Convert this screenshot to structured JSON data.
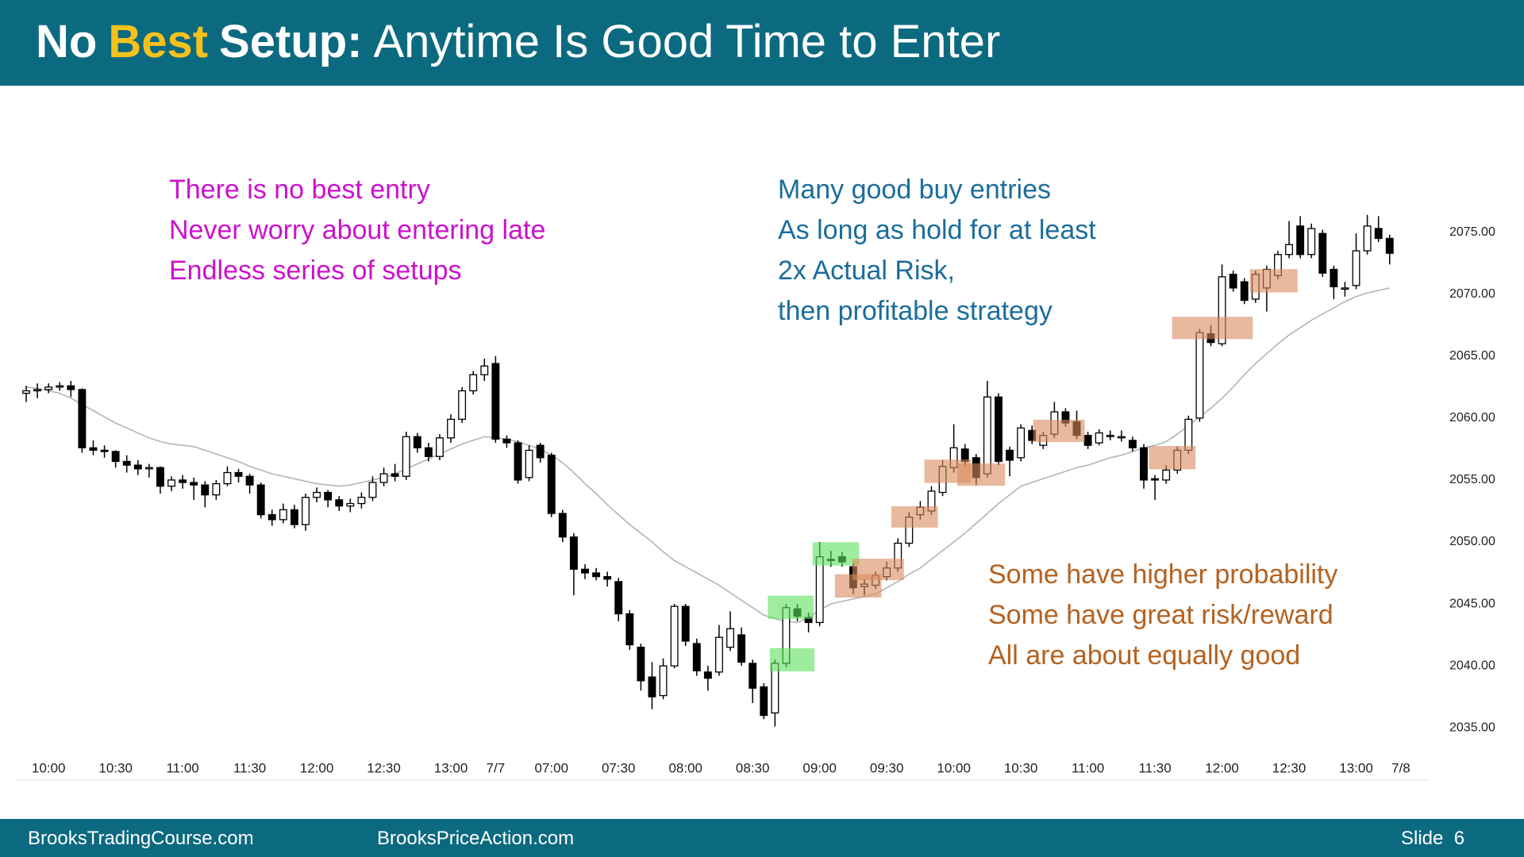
{
  "header": {
    "title": [
      "No",
      "Best",
      "Setup:",
      "Anytime Is Good Time to Enter"
    ]
  },
  "notes": {
    "left": [
      "There is no best entry",
      "Never worry about entering late",
      "Endless series of setups"
    ],
    "right": [
      "Many good buy entries",
      "As long as hold for at least",
      "2x Actual Risk,",
      "then profitable strategy"
    ],
    "bottom": [
      "Some have higher probability",
      "Some have great risk/reward",
      "All are about equally good"
    ]
  },
  "footer": {
    "left": "BrooksTradingCourse.com",
    "center": "BrooksPriceAction.com",
    "slide": "Slide  6"
  },
  "chart_data": {
    "type": "candlestick",
    "up_color": "#ffffff",
    "down_color": "#000000",
    "categories": [
      null,
      null,
      "10:00",
      null,
      null,
      null,
      null,
      null,
      "10:30",
      null,
      null,
      null,
      null,
      null,
      "11:00",
      null,
      null,
      null,
      null,
      null,
      "11:30",
      null,
      null,
      null,
      null,
      null,
      "12:00",
      null,
      null,
      null,
      null,
      null,
      "12:30",
      null,
      null,
      null,
      null,
      null,
      "13:00",
      null,
      null,
      null,
      "7/7",
      null,
      null,
      null,
      null,
      "07:00",
      null,
      null,
      null,
      null,
      null,
      "07:30",
      null,
      null,
      null,
      null,
      null,
      "08:00",
      null,
      null,
      null,
      null,
      null,
      "08:30",
      null,
      null,
      null,
      null,
      null,
      "09:00",
      null,
      null,
      null,
      null,
      null,
      "09:30",
      null,
      null,
      null,
      null,
      null,
      "10:00",
      null,
      null,
      null,
      null,
      null,
      "10:30",
      null,
      null,
      null,
      null,
      null,
      "11:00",
      null,
      null,
      null,
      null,
      null,
      "11:30",
      null,
      null,
      null,
      null,
      null,
      "12:00",
      null,
      null,
      null,
      null,
      null,
      "12:30",
      null,
      null,
      null,
      null,
      null,
      "13:00",
      null,
      null,
      null,
      "7/8"
    ],
    "open": [
      2062.0,
      2062.2,
      2062.3,
      2062.5,
      2062.6,
      2062.3,
      2057.6,
      2057.4,
      2057.3,
      2056.5,
      2056.2,
      2055.9,
      2056.0,
      2054.5,
      2055.0,
      2054.8,
      2054.6,
      2053.8,
      2054.7,
      2055.6,
      2055.3,
      2054.6,
      2052.2,
      2051.8,
      2052.6,
      2051.4,
      2053.6,
      2054.0,
      2053.4,
      2052.9,
      2053.1,
      2053.6,
      2054.8,
      2055.5,
      2055.3,
      2058.5,
      2057.6,
      2056.9,
      2058.4,
      2059.9,
      2062.2,
      2063.5,
      2064.4,
      2058.3,
      2058.0,
      2055.2,
      2057.8,
      2057.0,
      2052.3,
      2050.4,
      2047.8,
      2047.5,
      2047.2,
      2046.8,
      2044.2,
      2041.5,
      2039.1,
      2037.6,
      2040.0,
      2044.8,
      2041.8,
      2039.5,
      2039.5,
      2041.5,
      2042.5,
      2040.2,
      2038.3,
      2036.2,
      2040.2,
      2044.6,
      2043.9,
      2043.5,
      2048.6,
      2048.8,
      2048.0,
      2046.4,
      2046.5,
      2047.2,
      2047.9,
      2049.9,
      2052.2,
      2052.5,
      2054.0,
      2056.0,
      2057.5,
      2056.8,
      2055.5,
      2061.7,
      2057.4,
      2056.8,
      2059.0,
      2057.8,
      2058.7,
      2060.5,
      2059.7,
      2058.6,
      2058.0,
      2058.6,
      2058.5,
      2058.2,
      2057.6,
      2055.1,
      2055.0,
      2055.8,
      2057.4,
      2060.0,
      2066.8,
      2066.0,
      2071.6,
      2071.0,
      2069.6,
      2070.5,
      2071.5,
      2073.2,
      2075.5,
      2073.2,
      2074.9,
      2072.0,
      2070.4,
      2070.7,
      2073.5,
      2075.3,
      2074.5,
      null
    ],
    "high": [
      2062.6,
      2062.8,
      2062.8,
      2062.9,
      2063.0,
      2062.4,
      2058.2,
      2057.8,
      2057.4,
      2057.0,
      2056.6,
      2056.3,
      2056.1,
      2055.3,
      2055.4,
      2055.2,
      2054.9,
      2055.0,
      2056.1,
      2055.9,
      2055.5,
      2054.8,
      2052.6,
      2053.1,
      2053.0,
      2053.9,
      2054.4,
      2054.2,
      2053.7,
      2053.5,
      2054.0,
      2055.3,
      2056.0,
      2056.3,
      2058.9,
      2058.8,
      2058.0,
      2058.7,
      2060.3,
      2062.5,
      2063.8,
      2064.8,
      2065.0,
      2058.6,
      2058.2,
      2057.8,
      2058.0,
      2057.2,
      2052.6,
      2050.7,
      2048.2,
      2047.9,
      2047.6,
      2047.1,
      2044.5,
      2041.8,
      2040.3,
      2040.6,
      2045.0,
      2045.0,
      2042.2,
      2040.0,
      2043.3,
      2044.4,
      2043.1,
      2040.5,
      2038.6,
      2040.5,
      2045.0,
      2045.0,
      2044.3,
      2050.0,
      2049.3,
      2049.2,
      2048.3,
      2047.0,
      2047.6,
      2048.4,
      2050.3,
      2052.4,
      2053.3,
      2054.5,
      2056.6,
      2059.5,
      2057.9,
      2057.1,
      2063.0,
      2062.0,
      2057.7,
      2059.5,
      2059.4,
      2058.9,
      2061.3,
      2060.8,
      2060.6,
      2058.9,
      2059.1,
      2059.0,
      2059.0,
      2058.5,
      2057.9,
      2055.4,
      2056.2,
      2057.7,
      2060.2,
      2067.2,
      2067.5,
      2072.4,
      2071.9,
      2071.3,
      2071.9,
      2072.3,
      2073.5,
      2075.9,
      2076.3,
      2075.7,
      2075.2,
      2072.3,
      2071.0,
      2074.9,
      2076.4,
      2076.3,
      2074.8,
      null
    ],
    "low": [
      2061.3,
      2061.6,
      2062.0,
      2062.2,
      2061.7,
      2057.2,
      2057.0,
      2056.8,
      2056.0,
      2055.6,
      2055.4,
      2055.2,
      2053.9,
      2054.1,
      2054.3,
      2053.4,
      2052.8,
      2053.4,
      2054.5,
      2054.8,
      2053.9,
      2051.9,
      2051.3,
      2051.5,
      2051.1,
      2050.9,
      2053.2,
      2052.8,
      2052.5,
      2052.4,
      2052.7,
      2053.3,
      2054.5,
      2054.9,
      2055.0,
      2057.2,
      2056.5,
      2056.6,
      2058.0,
      2059.6,
      2061.9,
      2063.0,
      2058.0,
      2057.6,
      2054.7,
      2054.9,
      2056.4,
      2052.0,
      2050.0,
      2045.7,
      2047.0,
      2046.9,
      2046.4,
      2043.6,
      2041.3,
      2038.0,
      2036.5,
      2037.3,
      2039.8,
      2041.6,
      2039.2,
      2038.0,
      2039.2,
      2041.2,
      2040.0,
      2037.0,
      2035.7,
      2035.1,
      2039.9,
      2043.6,
      2042.7,
      2043.2,
      2048.0,
      2048.0,
      2045.8,
      2045.7,
      2046.2,
      2046.9,
      2047.6,
      2049.6,
      2051.8,
      2052.2,
      2053.7,
      2055.6,
      2056.1,
      2054.6,
      2055.2,
      2056.2,
      2055.3,
      2056.5,
      2057.9,
      2057.5,
      2058.4,
      2059.3,
      2058.3,
      2057.5,
      2057.8,
      2058.2,
      2058.1,
      2057.3,
      2054.3,
      2053.4,
      2054.7,
      2055.5,
      2057.1,
      2059.7,
      2065.8,
      2065.8,
      2070.2,
      2069.2,
      2069.3,
      2068.6,
      2071.2,
      2072.9,
      2072.9,
      2072.9,
      2071.4,
      2069.6,
      2069.8,
      2070.4,
      2073.2,
      2074.2,
      2072.4,
      null
    ],
    "close": [
      2062.2,
      2062.3,
      2062.5,
      2062.6,
      2062.3,
      2057.6,
      2057.4,
      2057.3,
      2056.5,
      2056.2,
      2055.9,
      2056.0,
      2054.5,
      2055.0,
      2054.8,
      2054.6,
      2053.8,
      2054.7,
      2055.6,
      2055.3,
      2054.6,
      2052.2,
      2051.8,
      2052.6,
      2051.4,
      2053.6,
      2054.0,
      2053.4,
      2052.9,
      2053.1,
      2053.6,
      2054.8,
      2055.5,
      2055.3,
      2058.5,
      2057.6,
      2056.9,
      2058.4,
      2059.9,
      2062.2,
      2063.5,
      2064.2,
      2058.3,
      2058.0,
      2055.0,
      2057.4,
      2056.8,
      2052.3,
      2050.4,
      2047.8,
      2047.5,
      2047.2,
      2047.0,
      2044.2,
      2041.7,
      2038.8,
      2037.5,
      2040.0,
      2044.8,
      2042.0,
      2039.6,
      2039.0,
      2042.3,
      2043.0,
      2040.3,
      2038.2,
      2036.0,
      2040.2,
      2044.7,
      2044.0,
      2043.5,
      2048.8,
      2048.5,
      2048.4,
      2046.3,
      2046.6,
      2047.3,
      2047.9,
      2049.9,
      2052.0,
      2052.8,
      2054.1,
      2056.1,
      2057.6,
      2056.5,
      2055.2,
      2061.7,
      2056.5,
      2056.6,
      2059.2,
      2058.2,
      2058.6,
      2060.5,
      2059.6,
      2058.6,
      2057.8,
      2058.8,
      2058.6,
      2058.5,
      2057.6,
      2055.0,
      2055.0,
      2055.8,
      2057.4,
      2059.9,
      2066.9,
      2066.1,
      2071.4,
      2070.5,
      2069.5,
      2071.6,
      2072.0,
      2073.2,
      2074.0,
      2073.2,
      2075.3,
      2071.7,
      2070.6,
      2070.5,
      2073.5,
      2075.5,
      2074.5,
      2073.3,
      null
    ],
    "moving_average": {
      "color": "#b4b4b4",
      "values": [
        2062.5,
        2062.4,
        2062.2,
        2062.0,
        2061.6,
        2061.1,
        2060.6,
        2060.1,
        2059.6,
        2059.2,
        2058.8,
        2058.4,
        2058.1,
        2057.9,
        2057.8,
        2057.7,
        2057.4,
        2057.1,
        2056.8,
        2056.5,
        2056.1,
        2055.8,
        2055.5,
        2055.3,
        2055.1,
        2054.9,
        2054.7,
        2054.6,
        2054.5,
        2054.6,
        2054.8,
        2055.0,
        2055.2,
        2055.5,
        2055.9,
        2056.3,
        2056.7,
        2057.1,
        2057.5,
        2057.9,
        2058.2,
        2058.5,
        2058.4,
        2058.3,
        2058.1,
        2057.8,
        2057.5,
        2057.0,
        2056.4,
        2055.6,
        2054.7,
        2053.9,
        2053.0,
        2052.2,
        2051.4,
        2050.7,
        2050.0,
        2049.2,
        2048.5,
        2048.0,
        2047.5,
        2047.0,
        2046.5,
        2045.9,
        2045.3,
        2044.7,
        2044.1,
        2043.8,
        2043.6,
        2043.5,
        2043.9,
        2044.5,
        2045.0,
        2045.2,
        2045.4,
        2045.6,
        2045.8,
        2046.3,
        2046.8,
        2047.4,
        2047.9,
        2048.6,
        2049.3,
        2050.0,
        2050.7,
        2051.5,
        2052.3,
        2053.1,
        2053.8,
        2054.5,
        2054.8,
        2055.1,
        2055.4,
        2055.7,
        2056.0,
        2056.2,
        2056.5,
        2056.8,
        2057.0,
        2057.3,
        2057.6,
        2057.8,
        2058.1,
        2058.7,
        2059.4,
        2060.1,
        2060.8,
        2061.6,
        2062.5,
        2063.5,
        2064.4,
        2065.2,
        2066.0,
        2066.7,
        2067.3,
        2067.9,
        2068.4,
        2068.9,
        2069.4,
        2069.8,
        2070.1,
        2070.3,
        2070.5,
        null
      ]
    },
    "ylim": [
      2033,
      2086
    ],
    "yticks": [
      {
        "value": 2035,
        "label": "2035.00"
      },
      {
        "value": 2040,
        "label": "2040.00"
      },
      {
        "value": 2045,
        "label": "2045.00"
      },
      {
        "value": 2050,
        "label": "2050.00"
      },
      {
        "value": 2055,
        "label": "2055.00"
      },
      {
        "value": 2060,
        "label": "2060.00"
      },
      {
        "value": 2065,
        "label": "2065.00"
      },
      {
        "value": 2070,
        "label": "2070.00"
      },
      {
        "value": 2075,
        "label": "2075.00"
      }
    ]
  }
}
